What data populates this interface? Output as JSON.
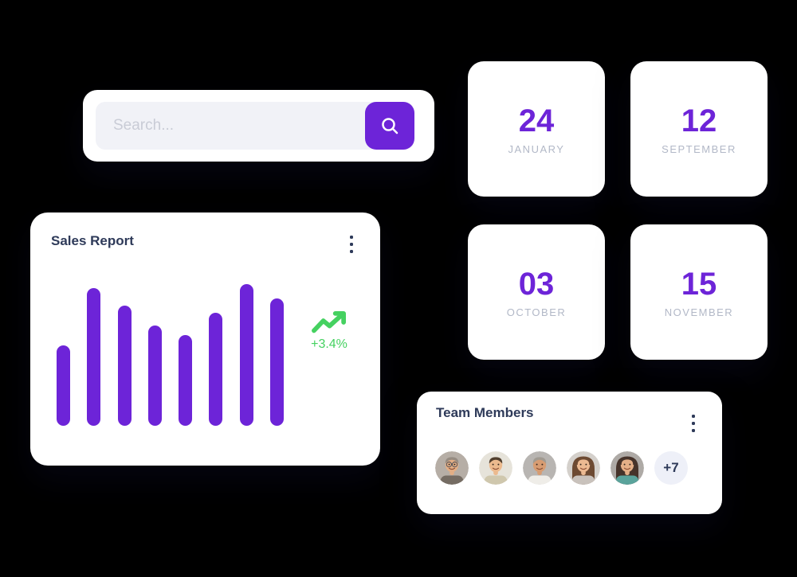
{
  "theme": {
    "background": "#000000",
    "card_background": "#ffffff",
    "accent_purple": "#6d24d8",
    "title_navy": "#2e3a59",
    "muted_gray": "#b2b8c7",
    "green": "#45d160",
    "input_background": "#f1f2f7",
    "placeholder_gray": "#c9ccd6",
    "badge_background": "#eef0f8"
  },
  "search": {
    "placeholder": "Search...",
    "icon": "magnifier-search-icon",
    "button_color": "#6d24d8"
  },
  "sales_report": {
    "title": "Sales Report",
    "menu_icon": "kebab-vertical-dots",
    "trend_icon": "trending-up-arrow",
    "trend_value": "+3.4%"
  },
  "chart_data": {
    "type": "bar",
    "title": "Sales Report",
    "bar_count": 8,
    "values": [
      57,
      97,
      85,
      71,
      64,
      80,
      100,
      90
    ],
    "unit": "percent of tallest bar",
    "categories": [
      "",
      "",
      "",
      "",
      "",
      "",
      "",
      ""
    ],
    "bar_color": "#6d24d8",
    "annotation": "+3.4%",
    "annotation_color": "#45d160",
    "axes": "none",
    "grid": false,
    "legend": "none"
  },
  "date_cards": [
    {
      "day": "24",
      "month": "JANUARY"
    },
    {
      "day": "12",
      "month": "SEPTEMBER"
    },
    {
      "day": "03",
      "month": "OCTOBER"
    },
    {
      "day": "15",
      "month": "NOVEMBER"
    }
  ],
  "team": {
    "title": "Team Members",
    "menu_icon": "kebab-vertical-dots",
    "overflow_label": "+7",
    "avatars": [
      {
        "description": "smiling-man-with-glasses",
        "style": "short",
        "glasses": true,
        "bg": "#b6aea6",
        "skin": "#e3ae85",
        "hair": "#968c82",
        "shirt": "#756c63"
      },
      {
        "description": "young-man-short-dark-hair",
        "style": "short",
        "glasses": false,
        "bg": "#e6e3da",
        "skin": "#ecba8e",
        "hair": "#513f2e",
        "shirt": "#cfc7ad"
      },
      {
        "description": "man-gray-wavy-hair",
        "style": "short",
        "glasses": false,
        "bg": "#b8b5b2",
        "skin": "#d79c72",
        "hair": "#a19b92",
        "shirt": "#efede8"
      },
      {
        "description": "woman-long-brown-hair",
        "style": "long",
        "glasses": false,
        "bg": "#d4d0cb",
        "skin": "#ecba92",
        "hair": "#6d4a32",
        "shirt": "#c9c2bc"
      },
      {
        "description": "woman-long-dark-hair-teal-top",
        "style": "long",
        "glasses": false,
        "bg": "#aeaaa6",
        "skin": "#e5af87",
        "hair": "#46332a",
        "shirt": "#5aa39b"
      }
    ]
  }
}
